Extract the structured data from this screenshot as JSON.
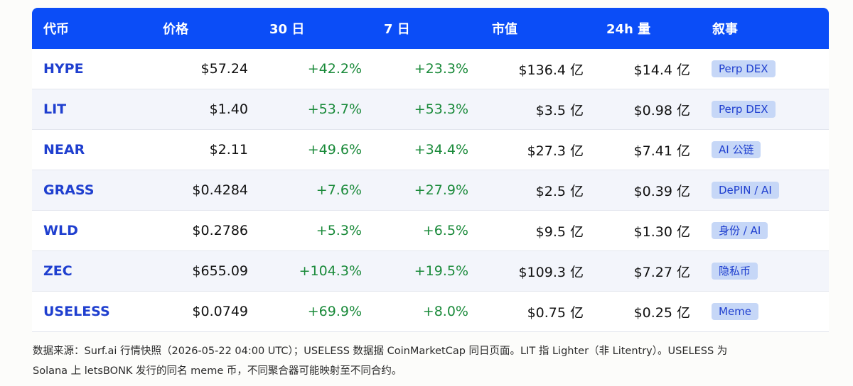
{
  "table": {
    "headers": {
      "symbol": "代币",
      "price": "价格",
      "d30": "30 日",
      "d7": "7 日",
      "mcap": "市值",
      "vol24": "24h 量",
      "narrative": "叙事"
    },
    "rows": [
      {
        "symbol": "HYPE",
        "price": "$57.24",
        "d30": "+42.2%",
        "d7": "+23.3%",
        "mcap": "$136.4 亿",
        "vol24": "$14.4 亿",
        "narrative": "Perp DEX"
      },
      {
        "symbol": "LIT",
        "price": "$1.40",
        "d30": "+53.7%",
        "d7": "+53.3%",
        "mcap": "$3.5 亿",
        "vol24": "$0.98 亿",
        "narrative": "Perp DEX"
      },
      {
        "symbol": "NEAR",
        "price": "$2.11",
        "d30": "+49.6%",
        "d7": "+34.4%",
        "mcap": "$27.3 亿",
        "vol24": "$7.41 亿",
        "narrative": "AI 公链"
      },
      {
        "symbol": "GRASS",
        "price": "$0.4284",
        "d30": "+7.6%",
        "d7": "+27.9%",
        "mcap": "$2.5 亿",
        "vol24": "$0.39 亿",
        "narrative": "DePIN / AI"
      },
      {
        "symbol": "WLD",
        "price": "$0.2786",
        "d30": "+5.3%",
        "d7": "+6.5%",
        "mcap": "$9.5 亿",
        "vol24": "$1.30 亿",
        "narrative": "身份 / AI"
      },
      {
        "symbol": "ZEC",
        "price": "$655.09",
        "d30": "+104.3%",
        "d7": "+19.5%",
        "mcap": "$109.3 亿",
        "vol24": "$7.27 亿",
        "narrative": "隐私币"
      },
      {
        "symbol": "USELESS",
        "price": "$0.0749",
        "d30": "+69.9%",
        "d7": "+8.0%",
        "mcap": "$0.75 亿",
        "vol24": "$0.25 亿",
        "narrative": "Meme"
      }
    ]
  },
  "footnote": {
    "line1": "数据来源：Surf.ai 行情快照（2026-05-22 04:00 UTC）；USELESS 数据据 CoinMarketCap 同日页面。LIT 指 Lighter（非 Litentry）。USELESS 为",
    "line2": "Solana 上 letsBONK 发行的同名 meme 币，不同聚合器可能映射至不同合约。"
  },
  "colors": {
    "header_bg": "#0b4df7",
    "symbol_text": "#1f3fcf",
    "positive": "#1a8a3a",
    "tag_bg": "#c6d7f7"
  }
}
